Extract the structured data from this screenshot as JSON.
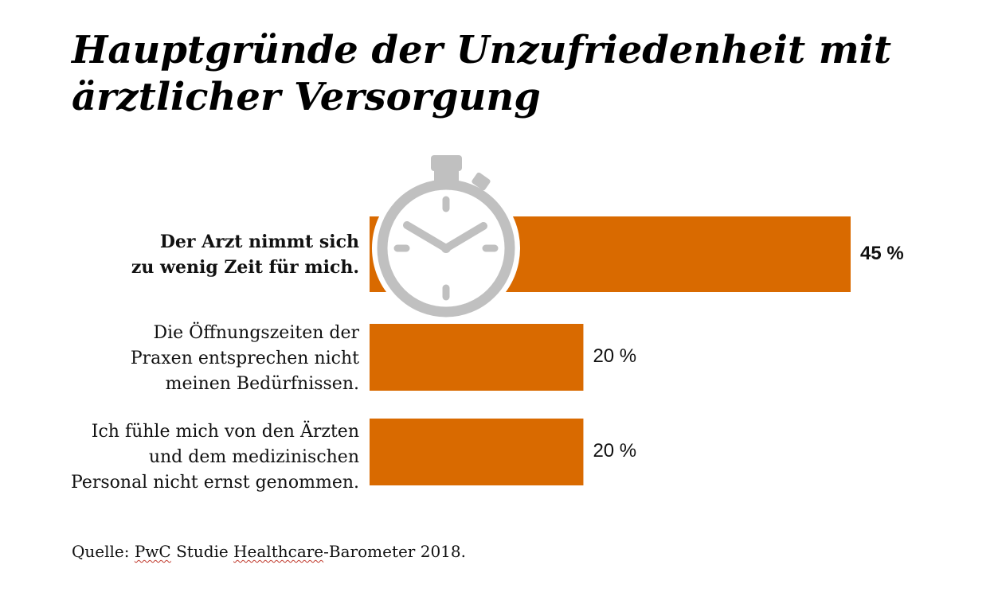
{
  "title": {
    "line1": "Hauptgründe der Unzufriedenheit mit",
    "line2": "ärztlicher Versorgung"
  },
  "chart_data": {
    "type": "bar",
    "orientation": "horizontal",
    "categories": [
      "Der Arzt nimmt sich zu wenig Zeit für mich.",
      "Die Öffnungszeiten der Praxen entsprechen nicht meinen Bedürfnissen.",
      "Ich fühle mich von den Ärzten und dem medizinischen Personal nicht ernst genommen."
    ],
    "category_lines": [
      [
        "Der Arzt nimmt sich",
        "zu wenig Zeit für mich."
      ],
      [
        "Die Öffnungszeiten der",
        "Praxen entsprechen nicht",
        "meinen Bedürfnissen."
      ],
      [
        "Ich fühle mich von den Ärzten",
        "und dem medizinischen",
        "Personal nicht ernst genommen."
      ]
    ],
    "values": [
      45,
      20,
      20
    ],
    "value_labels": [
      "45 %",
      "20 %",
      "20 %"
    ],
    "unit": "%",
    "bar_color": "#d96a00",
    "icon": "stopwatch-icon",
    "icon_color": "#c0c0c0"
  },
  "source": {
    "prefix": "Quelle: ",
    "pwc": "PwC",
    "mid": " Studie ",
    "healthcare": "Healthcare",
    "suffix": "-Barometer 2018."
  }
}
